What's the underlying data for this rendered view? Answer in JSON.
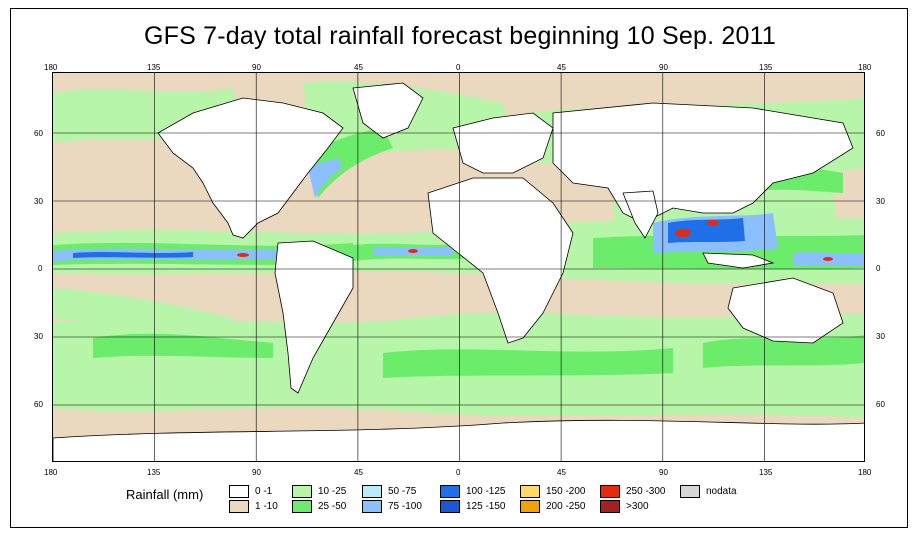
{
  "title": "GFS 7-day total rainfall forecast beginning 10 Sep. 2011",
  "axes": {
    "lon_ticks": [
      "180",
      "135",
      "90",
      "45",
      "0",
      "45",
      "90",
      "135",
      "180"
    ],
    "lat_ticks": [
      "60",
      "30",
      "0",
      "30",
      "60"
    ]
  },
  "legend": {
    "title": "Rainfall (mm)",
    "items": [
      {
        "label": "0 -1",
        "color": "#ffffff"
      },
      {
        "label": "1 -10",
        "color": "#ead8bf"
      },
      {
        "label": "10 -25",
        "color": "#b7f5a8"
      },
      {
        "label": "25 -50",
        "color": "#6bec6b"
      },
      {
        "label": "50 -75",
        "color": "#b9ecfb"
      },
      {
        "label": "75 -100",
        "color": "#8cbfff"
      },
      {
        "label": "100 -125",
        "color": "#1f6fe8"
      },
      {
        "label": "125 -150",
        "color": "#1b57d9"
      },
      {
        "label": "150 -200",
        "color": "#ffd966"
      },
      {
        "label": "200 -250",
        "color": "#f2a200"
      },
      {
        "label": "250 -300",
        "color": "#e62a10"
      },
      {
        "label": ">300",
        "color": "#a52020"
      },
      {
        "label": "nodata",
        "color": "#d6d6d6"
      }
    ]
  },
  "colors": {
    "dry": "#ead8bf",
    "light": "#b7f5a8",
    "moderate": "#6bec6b",
    "heavy": "#8cbfff",
    "veryheavy": "#1f6fe8",
    "extreme": "#e62a10",
    "land": "#ffffff"
  }
}
